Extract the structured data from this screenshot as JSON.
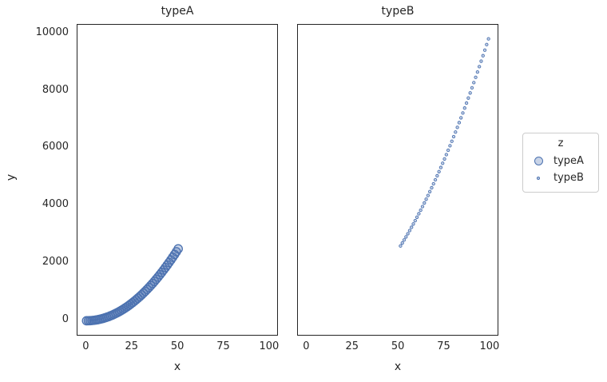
{
  "accent_color": "#4c72b0",
  "text_color": "#262626",
  "facets": [
    {
      "title": "typeA"
    },
    {
      "title": "typeB"
    }
  ],
  "axes": {
    "xlabel": "x",
    "ylabel": "y"
  },
  "legend": {
    "title": "z",
    "entries": [
      {
        "label": "typeA",
        "marker": "large-circle"
      },
      {
        "label": "typeB",
        "marker": "small-circle"
      }
    ]
  },
  "chart_data": {
    "type": "scatter",
    "title": "",
    "xlabel": "x",
    "ylabel": "y",
    "grid": false,
    "legend_position": "right",
    "x_ticks": [
      0,
      25,
      50,
      75,
      100
    ],
    "y_ticks": [
      0,
      2000,
      4000,
      6000,
      8000,
      10000
    ],
    "xlim": [
      -4.95,
      103.95
    ],
    "ylim": [
      -490.05,
      10291.05
    ],
    "marker_color": "#4c72b0",
    "marker_fill_opacity": 0.3,
    "marker_styles": {
      "typeA": {
        "radius": 5.2,
        "stroke_width": 1.3
      },
      "typeB": {
        "radius": 1.7,
        "stroke_width": 0.9
      }
    },
    "series": [
      {
        "name": "typeA",
        "facet": 0,
        "x": [
          0,
          1,
          2,
          3,
          4,
          5,
          6,
          7,
          8,
          9,
          10,
          11,
          12,
          13,
          14,
          15,
          16,
          17,
          18,
          19,
          20,
          21,
          22,
          23,
          24,
          25,
          26,
          27,
          28,
          29,
          30,
          31,
          32,
          33,
          34,
          35,
          36,
          37,
          38,
          39,
          40,
          41,
          42,
          43,
          44,
          45,
          46,
          47,
          48,
          49,
          50
        ],
        "y": [
          0,
          1,
          4,
          9,
          16,
          25,
          36,
          49,
          64,
          81,
          100,
          121,
          144,
          169,
          196,
          225,
          256,
          289,
          324,
          361,
          400,
          441,
          484,
          529,
          576,
          625,
          676,
          729,
          784,
          841,
          900,
          961,
          1024,
          1089,
          1156,
          1225,
          1296,
          1369,
          1444,
          1521,
          1600,
          1681,
          1764,
          1849,
          1936,
          2025,
          2116,
          2209,
          2304,
          2401,
          2500
        ]
      },
      {
        "name": "typeB",
        "facet": 1,
        "x": [
          51,
          52,
          53,
          54,
          55,
          56,
          57,
          58,
          59,
          60,
          61,
          62,
          63,
          64,
          65,
          66,
          67,
          68,
          69,
          70,
          71,
          72,
          73,
          74,
          75,
          76,
          77,
          78,
          79,
          80,
          81,
          82,
          83,
          84,
          85,
          86,
          87,
          88,
          89,
          90,
          91,
          92,
          93,
          94,
          95,
          96,
          97,
          98,
          99
        ],
        "y": [
          2601,
          2704,
          2809,
          2916,
          3025,
          3136,
          3249,
          3364,
          3481,
          3600,
          3721,
          3844,
          3969,
          4096,
          4225,
          4356,
          4489,
          4624,
          4761,
          4900,
          5041,
          5184,
          5329,
          5476,
          5625,
          5776,
          5929,
          6084,
          6241,
          6400,
          6561,
          6724,
          6889,
          7056,
          7225,
          7396,
          7569,
          7744,
          7921,
          8100,
          8281,
          8464,
          8649,
          8836,
          9025,
          9216,
          9409,
          9604,
          9801
        ]
      }
    ]
  }
}
